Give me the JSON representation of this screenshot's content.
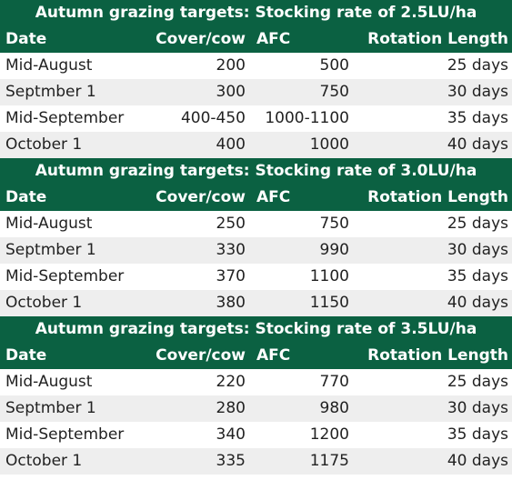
{
  "colors": {
    "header_bg": "#0b6142",
    "header_text": "#ffffff",
    "row_alt_bg": "#eeeeee",
    "text": "#222222"
  },
  "tables": [
    {
      "title": "Autumn grazing targets: Stocking rate of 2.5LU/ha",
      "headers": [
        "Date",
        "Cover/cow",
        "AFC",
        "Rotation Length"
      ],
      "rows": [
        [
          "Mid-August",
          "200",
          "500",
          "25 days"
        ],
        [
          "Septmber 1",
          "300",
          "750",
          "30 days"
        ],
        [
          "Mid-September",
          "400-450",
          "1000-1100",
          "35 days"
        ],
        [
          "October 1",
          "400",
          "1000",
          "40 days"
        ]
      ]
    },
    {
      "title": "Autumn grazing targets: Stocking rate of 3.0LU/ha",
      "headers": [
        "Date",
        "Cover/cow",
        "AFC",
        "Rotation Length"
      ],
      "rows": [
        [
          "Mid-August",
          "250",
          "750",
          "25 days"
        ],
        [
          "Septmber 1",
          "330",
          "990",
          "30 days"
        ],
        [
          "Mid-September",
          "370",
          "1100",
          "35 days"
        ],
        [
          "October 1",
          "380",
          "1150",
          "40 days"
        ]
      ]
    },
    {
      "title": "Autumn grazing targets: Stocking rate of 3.5LU/ha",
      "headers": [
        "Date",
        "Cover/cow",
        "AFC",
        "Rotation Length"
      ],
      "rows": [
        [
          "Mid-August",
          "220",
          "770",
          "25 days"
        ],
        [
          "Septmber 1",
          "280",
          "980",
          "30 days"
        ],
        [
          "Mid-September",
          "340",
          "1200",
          "35 days"
        ],
        [
          "October 1",
          "335",
          "1175",
          "40 days"
        ]
      ]
    }
  ]
}
